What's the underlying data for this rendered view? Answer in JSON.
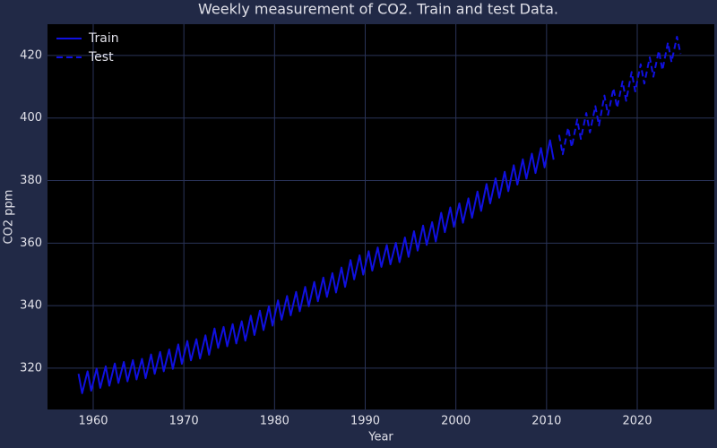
{
  "chart_data": {
    "type": "line",
    "title": "Weekly measurement of CO2. Train and test Data.",
    "x_label": "Year",
    "y_label": "CO2 ppm",
    "xlim": [
      1954.96,
      2028.5
    ],
    "ylim": [
      306.8,
      430.0
    ],
    "xticks": [
      1960,
      1970,
      1980,
      1990,
      2000,
      2010,
      2020
    ],
    "yticks": [
      320,
      340,
      360,
      380,
      400,
      420
    ],
    "grid": true,
    "legend": "upper-left",
    "series": [
      {
        "name": "Train",
        "color": "#1010e0",
        "dash": false,
        "x": [
          1958.38,
          1958.78,
          1959.38,
          1959.78,
          1960.38,
          1960.78,
          1961.38,
          1961.78,
          1962.38,
          1962.78,
          1963.38,
          1963.78,
          1964.38,
          1964.78,
          1965.38,
          1965.78,
          1966.38,
          1966.78,
          1967.38,
          1967.78,
          1968.38,
          1968.78,
          1969.38,
          1969.78,
          1970.38,
          1970.78,
          1971.38,
          1971.78,
          1972.38,
          1972.78,
          1973.38,
          1973.78,
          1974.38,
          1974.78,
          1975.38,
          1975.78,
          1976.38,
          1976.78,
          1977.38,
          1977.78,
          1978.38,
          1978.78,
          1979.38,
          1979.78,
          1980.38,
          1980.78,
          1981.38,
          1981.78,
          1982.38,
          1982.78,
          1983.38,
          1983.78,
          1984.38,
          1984.78,
          1985.38,
          1985.78,
          1986.38,
          1986.78,
          1987.38,
          1987.78,
          1988.38,
          1988.78,
          1989.38,
          1989.78,
          1990.38,
          1990.78,
          1991.38,
          1991.78,
          1992.38,
          1992.78,
          1993.38,
          1993.78,
          1994.38,
          1994.78,
          1995.38,
          1995.78,
          1996.38,
          1996.78,
          1997.38,
          1997.78,
          1998.38,
          1998.78,
          1999.38,
          1999.78,
          2000.38,
          2000.78,
          2001.38,
          2001.78,
          2002.38,
          2002.78,
          2003.38,
          2003.78,
          2004.38,
          2004.78,
          2005.38,
          2005.78,
          2006.38,
          2006.78,
          2007.38,
          2007.78,
          2008.38,
          2008.78,
          2009.38,
          2009.78,
          2010.38,
          2010.78
        ],
        "values": [
          318.2,
          312.0,
          319.0,
          312.8,
          319.9,
          313.7,
          320.6,
          314.4,
          321.5,
          315.3,
          322.0,
          315.8,
          322.6,
          316.4,
          323.0,
          316.8,
          324.4,
          318.2,
          325.2,
          319.0,
          326.0,
          319.8,
          327.6,
          321.4,
          328.7,
          322.5,
          329.3,
          323.1,
          330.5,
          324.3,
          332.7,
          326.5,
          333.2,
          327.0,
          334.1,
          327.9,
          335.0,
          328.8,
          336.8,
          330.6,
          338.4,
          332.2,
          339.8,
          333.6,
          341.7,
          335.5,
          343.1,
          336.9,
          344.4,
          338.2,
          346.0,
          339.8,
          347.6,
          341.4,
          349.0,
          342.8,
          350.4,
          344.2,
          352.2,
          346.0,
          354.6,
          348.4,
          356.1,
          349.9,
          357.4,
          351.2,
          358.6,
          352.4,
          359.4,
          353.2,
          360.1,
          353.9,
          361.8,
          355.6,
          363.8,
          357.6,
          365.6,
          359.4,
          366.7,
          360.5,
          369.7,
          363.5,
          371.4,
          365.2,
          372.7,
          366.5,
          374.3,
          368.1,
          376.5,
          370.3,
          378.9,
          372.7,
          380.7,
          374.5,
          382.8,
          376.6,
          384.9,
          378.7,
          386.8,
          380.6,
          388.6,
          382.4,
          390.4,
          384.2,
          392.9,
          386.7
        ]
      },
      {
        "name": "Test",
        "color": "#1010e0",
        "dash": true,
        "x": [
          2011.38,
          2011.78,
          2012.38,
          2012.78,
          2013.38,
          2013.78,
          2014.38,
          2014.78,
          2015.38,
          2015.78,
          2016.38,
          2016.78,
          2017.38,
          2017.78,
          2018.38,
          2018.78,
          2019.38,
          2019.78,
          2020.38,
          2020.78,
          2021.38,
          2021.78,
          2022.38,
          2022.78,
          2023.38,
          2023.78,
          2024.38,
          2024.78
        ],
        "values": [
          394.6,
          388.4,
          396.9,
          390.7,
          399.5,
          393.3,
          401.6,
          395.4,
          403.8,
          397.6,
          407.2,
          401.0,
          409.5,
          403.3,
          411.7,
          405.5,
          414.7,
          408.5,
          417.2,
          411.0,
          419.4,
          413.2,
          421.5,
          415.3,
          424.1,
          417.9,
          426.0,
          420.5
        ]
      }
    ]
  }
}
